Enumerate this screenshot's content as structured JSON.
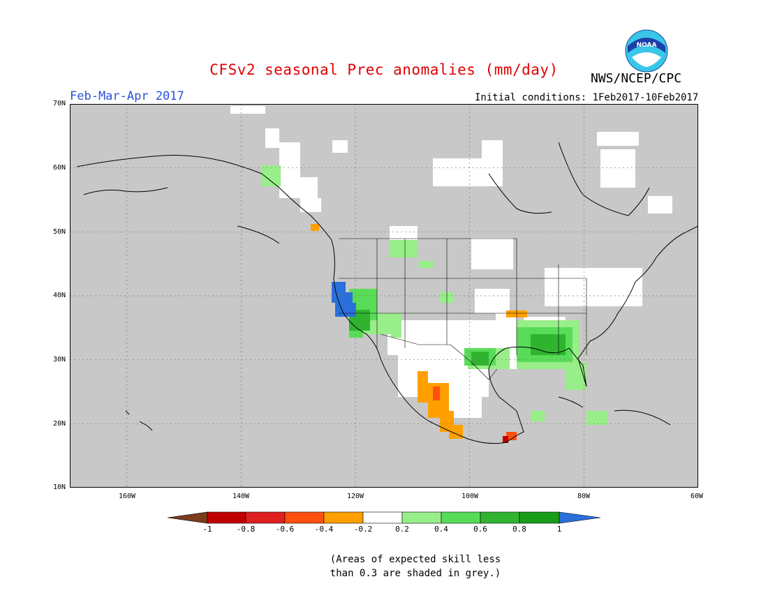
{
  "header": {
    "title": "CFSv2 seasonal Prec anomalies (mm/day)",
    "organization": "NWS/NCEP/CPC",
    "logo_text": "NOAA",
    "season": "Feb-Mar-Apr 2017",
    "initial_conditions": "Initial conditions: 1Feb2017-10Feb2017"
  },
  "map": {
    "lon_range": [
      -170,
      -60
    ],
    "lat_range": [
      10,
      70
    ],
    "lat_labels": [
      "70N",
      "60N",
      "50N",
      "40N",
      "30N",
      "20N",
      "10N"
    ],
    "lon_labels": [
      "160W",
      "140W",
      "120W",
      "100W",
      "80W",
      "60W"
    ],
    "background_color": "#c8c8c8",
    "land_color": "#c8c8c8"
  },
  "colorbar": {
    "labels": [
      "-1",
      "-0.8",
      "-0.6",
      "-0.4",
      "-0.2",
      "0.2",
      "0.4",
      "0.6",
      "0.8",
      "1"
    ],
    "colors": {
      "below_min": "#7b3b1c",
      "c1": "#c00000",
      "c2": "#e02020",
      "c3": "#ff5010",
      "c4": "#ffa000",
      "neutral": "#ffffff",
      "g1": "#98ee88",
      "g2": "#58dc58",
      "g3": "#30b430",
      "g4": "#1a9e1a",
      "above_max": "#2a6fdb"
    }
  },
  "footnote": {
    "line1": "(Areas of expected skill less",
    "line2": "than 0.3 are shaded in grey.)"
  }
}
